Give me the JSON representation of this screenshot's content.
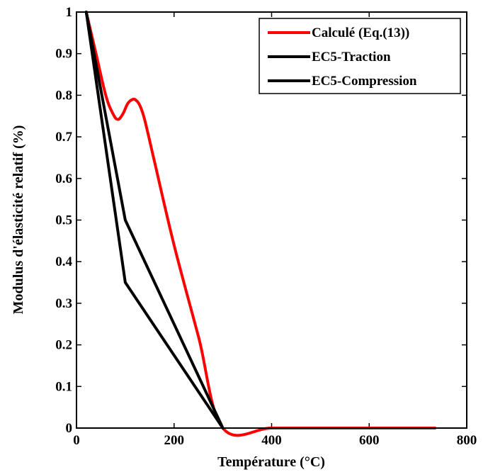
{
  "chart_data": {
    "type": "line",
    "xlabel": "Température (°C)",
    "ylabel": "Modulus d'élasticité relatif (%)",
    "xlim": [
      0,
      800
    ],
    "ylim": [
      0,
      1
    ],
    "xticks": [
      0,
      200,
      400,
      600,
      800
    ],
    "yticks": [
      0,
      0.1,
      0.2,
      0.3,
      0.4,
      0.5,
      0.6,
      0.7,
      0.8,
      0.9,
      1
    ],
    "xtick_labels": [
      "0",
      "200",
      "400",
      "600",
      "800"
    ],
    "ytick_labels": [
      "0",
      "0.1",
      "0.2",
      "0.3",
      "0.4",
      "0.5",
      "0.6",
      "0.7",
      "0.8",
      "0.9",
      "1"
    ],
    "grid": false,
    "legend_position": "top-right",
    "series": [
      {
        "name": "Calculé (Eq.(13))",
        "color": "#ff0000",
        "x": [
          20,
          40,
          60,
          75,
          85,
          95,
          105,
          115,
          122,
          130,
          140,
          160,
          200,
          250,
          300,
          400,
          500,
          600,
          735
        ],
        "y": [
          1.0,
          0.9,
          0.8,
          0.755,
          0.742,
          0.755,
          0.78,
          0.79,
          0.788,
          0.775,
          0.74,
          0.64,
          0.44,
          0.22,
          0.0,
          0.0,
          0.0,
          0.0,
          0.0
        ]
      },
      {
        "name": "EC5-Traction",
        "color": "#000000",
        "x": [
          20,
          100,
          300
        ],
        "y": [
          1.0,
          0.5,
          0.0
        ]
      },
      {
        "name": "EC5-Compression",
        "color": "#000000",
        "x": [
          20,
          100,
          300
        ],
        "y": [
          1.0,
          0.35,
          0.0
        ]
      }
    ]
  }
}
